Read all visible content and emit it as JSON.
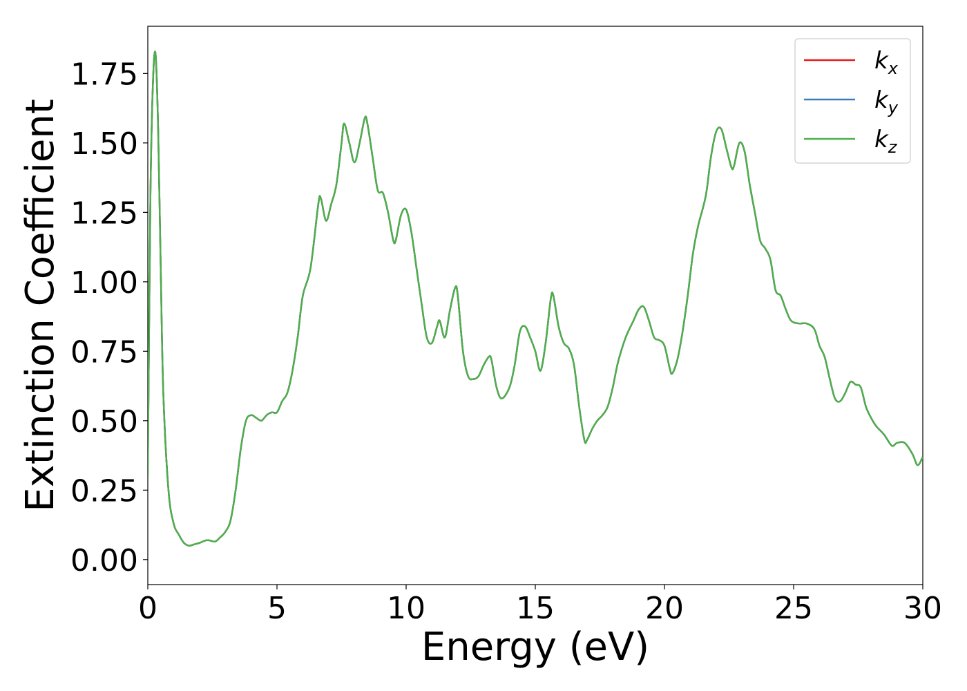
{
  "chart_data": {
    "type": "line",
    "xlabel": "Energy (eV)",
    "ylabel": "Extinction Coefficient",
    "xlim": [
      0,
      30
    ],
    "ylim": [
      -0.09,
      1.92
    ],
    "xticks": [
      0,
      5,
      10,
      15,
      20,
      25,
      30
    ],
    "xtick_labels": [
      "0",
      "5",
      "10",
      "15",
      "20",
      "25",
      "30"
    ],
    "yticks": [
      0.0,
      0.25,
      0.5,
      0.75,
      1.0,
      1.25,
      1.5,
      1.75
    ],
    "ytick_labels": [
      "0.00",
      "0.25",
      "0.50",
      "0.75",
      "1.00",
      "1.25",
      "1.50",
      "1.75"
    ],
    "grid": false,
    "legend_position": "top-right",
    "x": [
      0,
      0.1,
      0.2,
      0.3,
      0.4,
      0.5,
      0.6,
      0.8,
      1.0,
      1.2,
      1.4,
      1.6,
      1.8,
      2.0,
      2.3,
      2.6,
      2.8,
      3.0,
      3.2,
      3.4,
      3.6,
      3.8,
      4.0,
      4.2,
      4.4,
      4.6,
      4.8,
      5.0,
      5.2,
      5.4,
      5.6,
      5.8,
      6.0,
      6.3,
      6.6,
      6.7,
      6.9,
      7.1,
      7.3,
      7.5,
      7.6,
      7.8,
      8.0,
      8.2,
      8.4,
      8.5,
      8.7,
      8.9,
      9.1,
      9.3,
      9.5,
      9.6,
      9.8,
      10.0,
      10.2,
      10.4,
      10.6,
      10.8,
      11.0,
      11.2,
      11.3,
      11.5,
      11.7,
      11.9,
      12.0,
      12.2,
      12.4,
      12.6,
      12.8,
      13.0,
      13.2,
      13.3,
      13.5,
      13.7,
      14.0,
      14.2,
      14.4,
      14.6,
      14.8,
      15.0,
      15.2,
      15.4,
      15.6,
      15.7,
      15.9,
      16.1,
      16.3,
      16.5,
      16.7,
      16.9,
      17.0,
      17.2,
      17.4,
      17.6,
      17.8,
      18.0,
      18.2,
      18.5,
      18.8,
      19.0,
      19.2,
      19.4,
      19.6,
      19.8,
      20.0,
      20.2,
      20.3,
      20.5,
      20.7,
      20.9,
      21.1,
      21.3,
      21.6,
      21.8,
      22.0,
      22.2,
      22.4,
      22.6,
      22.7,
      22.9,
      23.1,
      23.3,
      23.5,
      23.7,
      23.9,
      24.1,
      24.3,
      24.5,
      24.7,
      24.9,
      25.2,
      25.5,
      25.8,
      26.0,
      26.2,
      26.4,
      26.6,
      26.8,
      27.0,
      27.2,
      27.4,
      27.6,
      27.8,
      28.0,
      28.2,
      28.5,
      28.8,
      29.0,
      29.3,
      29.6,
      29.8,
      30.0
    ],
    "series": [
      {
        "name": "k_x",
        "name_base": "k",
        "name_sub": "x",
        "color": "#e41a1c"
      },
      {
        "name": "k_y",
        "name_base": "k",
        "name_sub": "y",
        "color": "#377eb8"
      },
      {
        "name": "k_z",
        "name_base": "k",
        "name_sub": "z",
        "color": "#4daf4a"
      }
    ],
    "values": [
      0.3,
      1.3,
      1.72,
      1.82,
      1.55,
      1.05,
      0.6,
      0.25,
      0.13,
      0.09,
      0.06,
      0.05,
      0.055,
      0.06,
      0.07,
      0.065,
      0.08,
      0.1,
      0.14,
      0.25,
      0.4,
      0.5,
      0.52,
      0.51,
      0.5,
      0.52,
      0.53,
      0.53,
      0.57,
      0.6,
      0.68,
      0.8,
      0.95,
      1.05,
      1.28,
      1.3,
      1.22,
      1.28,
      1.35,
      1.5,
      1.57,
      1.5,
      1.43,
      1.5,
      1.59,
      1.57,
      1.45,
      1.33,
      1.32,
      1.25,
      1.15,
      1.15,
      1.24,
      1.26,
      1.18,
      1.05,
      0.92,
      0.8,
      0.78,
      0.84,
      0.86,
      0.8,
      0.9,
      0.98,
      0.95,
      0.75,
      0.66,
      0.65,
      0.66,
      0.7,
      0.73,
      0.72,
      0.62,
      0.58,
      0.62,
      0.7,
      0.82,
      0.84,
      0.8,
      0.75,
      0.68,
      0.78,
      0.94,
      0.95,
      0.84,
      0.78,
      0.76,
      0.7,
      0.55,
      0.43,
      0.43,
      0.47,
      0.5,
      0.52,
      0.55,
      0.62,
      0.71,
      0.8,
      0.86,
      0.9,
      0.91,
      0.86,
      0.8,
      0.79,
      0.77,
      0.69,
      0.67,
      0.72,
      0.82,
      0.95,
      1.1,
      1.2,
      1.31,
      1.45,
      1.54,
      1.55,
      1.48,
      1.41,
      1.42,
      1.5,
      1.47,
      1.35,
      1.25,
      1.15,
      1.12,
      1.08,
      0.97,
      0.95,
      0.9,
      0.86,
      0.85,
      0.85,
      0.83,
      0.77,
      0.73,
      0.65,
      0.58,
      0.57,
      0.6,
      0.64,
      0.63,
      0.62,
      0.55,
      0.51,
      0.48,
      0.45,
      0.41,
      0.42,
      0.42,
      0.38,
      0.34,
      0.37
    ]
  }
}
